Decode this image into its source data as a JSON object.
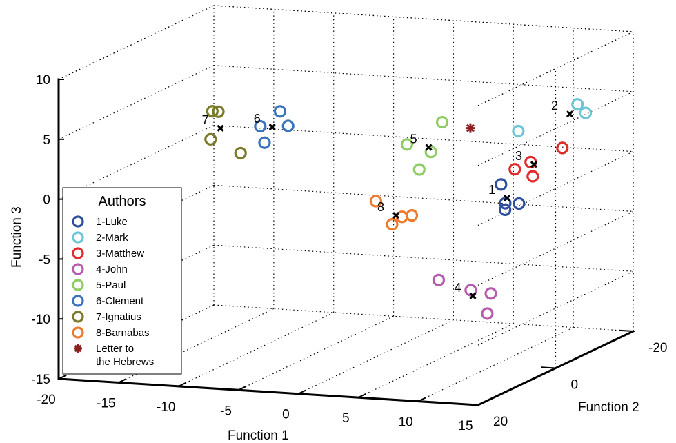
{
  "chart_data": {
    "type": "scatter",
    "projection": "3d",
    "xlabel": "Function 1",
    "ylabel": "Function 2",
    "zlabel": "Function 3",
    "xlim": [
      -20,
      15
    ],
    "ylim": [
      -20,
      20
    ],
    "zlim": [
      -15,
      10
    ],
    "x_ticks": [
      "-20",
      "-15",
      "-10",
      "-5",
      "0",
      "5",
      "10",
      "15"
    ],
    "y_ticks": [
      "-20",
      "0",
      "20"
    ],
    "z_ticks": [
      "10",
      "5",
      "0",
      "-5",
      "-10",
      "-15"
    ],
    "grid": true,
    "legend": {
      "title": "Authors",
      "placement": "lower-left",
      "entries": [
        {
          "label": "1-Luke",
          "color": "#2e4fa0",
          "marker": "circle"
        },
        {
          "label": "2-Mark",
          "color": "#6cc6d6",
          "marker": "circle"
        },
        {
          "label": "3-Matthew",
          "color": "#e02b2b",
          "marker": "circle"
        },
        {
          "label": "4-John",
          "color": "#b85bb0",
          "marker": "circle"
        },
        {
          "label": "5-Paul",
          "color": "#8fcc63",
          "marker": "circle"
        },
        {
          "label": "6-Clement",
          "color": "#3a73bd",
          "marker": "circle"
        },
        {
          "label": "7-Ignatius",
          "color": "#7a7a2a",
          "marker": "circle"
        },
        {
          "label": "8-Barnabas",
          "color": "#ee7a2f",
          "marker": "circle"
        },
        {
          "label": "Letter to",
          "label2": "the Hebrews",
          "color": "#8b2020",
          "marker": "star"
        }
      ]
    },
    "series": [
      {
        "name": "1-Luke",
        "color": "#2e4fa0",
        "group_label": "1",
        "points": [
          [
            8.5,
            -6,
            -1
          ],
          [
            9,
            -5.5,
            -3
          ],
          [
            10,
            -6,
            -2.5
          ],
          [
            9.5,
            -4,
            -2.2
          ]
        ],
        "centroid": [
          9.2,
          -5.4,
          -2
        ]
      },
      {
        "name": "2-Mark",
        "color": "#6cc6d6",
        "group_label": "2",
        "points": [
          [
            11,
            -18,
            4
          ],
          [
            12,
            -17,
            3.5
          ],
          [
            8,
            -12,
            2.5
          ]
        ],
        "centroid": [
          11,
          -16,
          3.5
        ]
      },
      {
        "name": "3-Matthew",
        "color": "#e02b2b",
        "group_label": "3",
        "points": [
          [
            9,
            -8,
            0
          ],
          [
            10,
            -9,
            0.5
          ],
          [
            12,
            -11,
            1.5
          ],
          [
            10.5,
            -8,
            -0.5
          ]
        ],
        "centroid": [
          10.4,
          -8.6,
          0.4
        ]
      },
      {
        "name": "4-John",
        "color": "#b85bb0",
        "group_label": "4",
        "points": [
          [
            2,
            -10,
            -10
          ],
          [
            5,
            -9,
            -10.5
          ],
          [
            7,
            -8,
            -10.5
          ],
          [
            8,
            -4,
            -11.5
          ]
        ],
        "centroid": [
          5.5,
          -8,
          -10.8
        ]
      },
      {
        "name": "5-Paul",
        "color": "#8fcc63",
        "group_label": "5",
        "points": [
          [
            1,
            -14,
            2.5
          ],
          [
            0,
            -8,
            1.5
          ],
          [
            2,
            -8,
            1
          ],
          [
            2,
            -5,
            0
          ]
        ],
        "centroid": [
          1.5,
          -9,
          1.2
        ]
      },
      {
        "name": "6-Clement",
        "color": "#3a73bd",
        "group_label": "6",
        "points": [
          [
            -8,
            0,
            5
          ],
          [
            -9,
            2,
            4
          ],
          [
            -8,
            4,
            3
          ],
          [
            -7,
            1,
            4
          ]
        ],
        "centroid": [
          -8,
          2,
          4
        ]
      },
      {
        "name": "7-Ignatius",
        "color": "#7a7a2a",
        "group_label": "7",
        "points": [
          [
            -13,
            2,
            5
          ],
          [
            -12.5,
            2,
            5
          ],
          [
            -12.5,
            4,
            3
          ],
          [
            -10,
            4,
            2
          ]
        ],
        "centroid": [
          -12,
          3,
          3.8
        ]
      },
      {
        "name": "8-Barnabas",
        "color": "#ee7a2f",
        "group_label": "8",
        "points": [
          [
            0,
            0,
            -2
          ],
          [
            2,
            2,
            -3.5
          ],
          [
            2.5,
            1,
            -3
          ],
          [
            3,
            0,
            -3
          ]
        ],
        "centroid": [
          2,
          1,
          -2.9
        ]
      },
      {
        "name": "Letter to the Hebrews",
        "color": "#8b2020",
        "marker": "star",
        "points": [
          [
            4,
            -12,
            2.5
          ]
        ]
      }
    ]
  }
}
